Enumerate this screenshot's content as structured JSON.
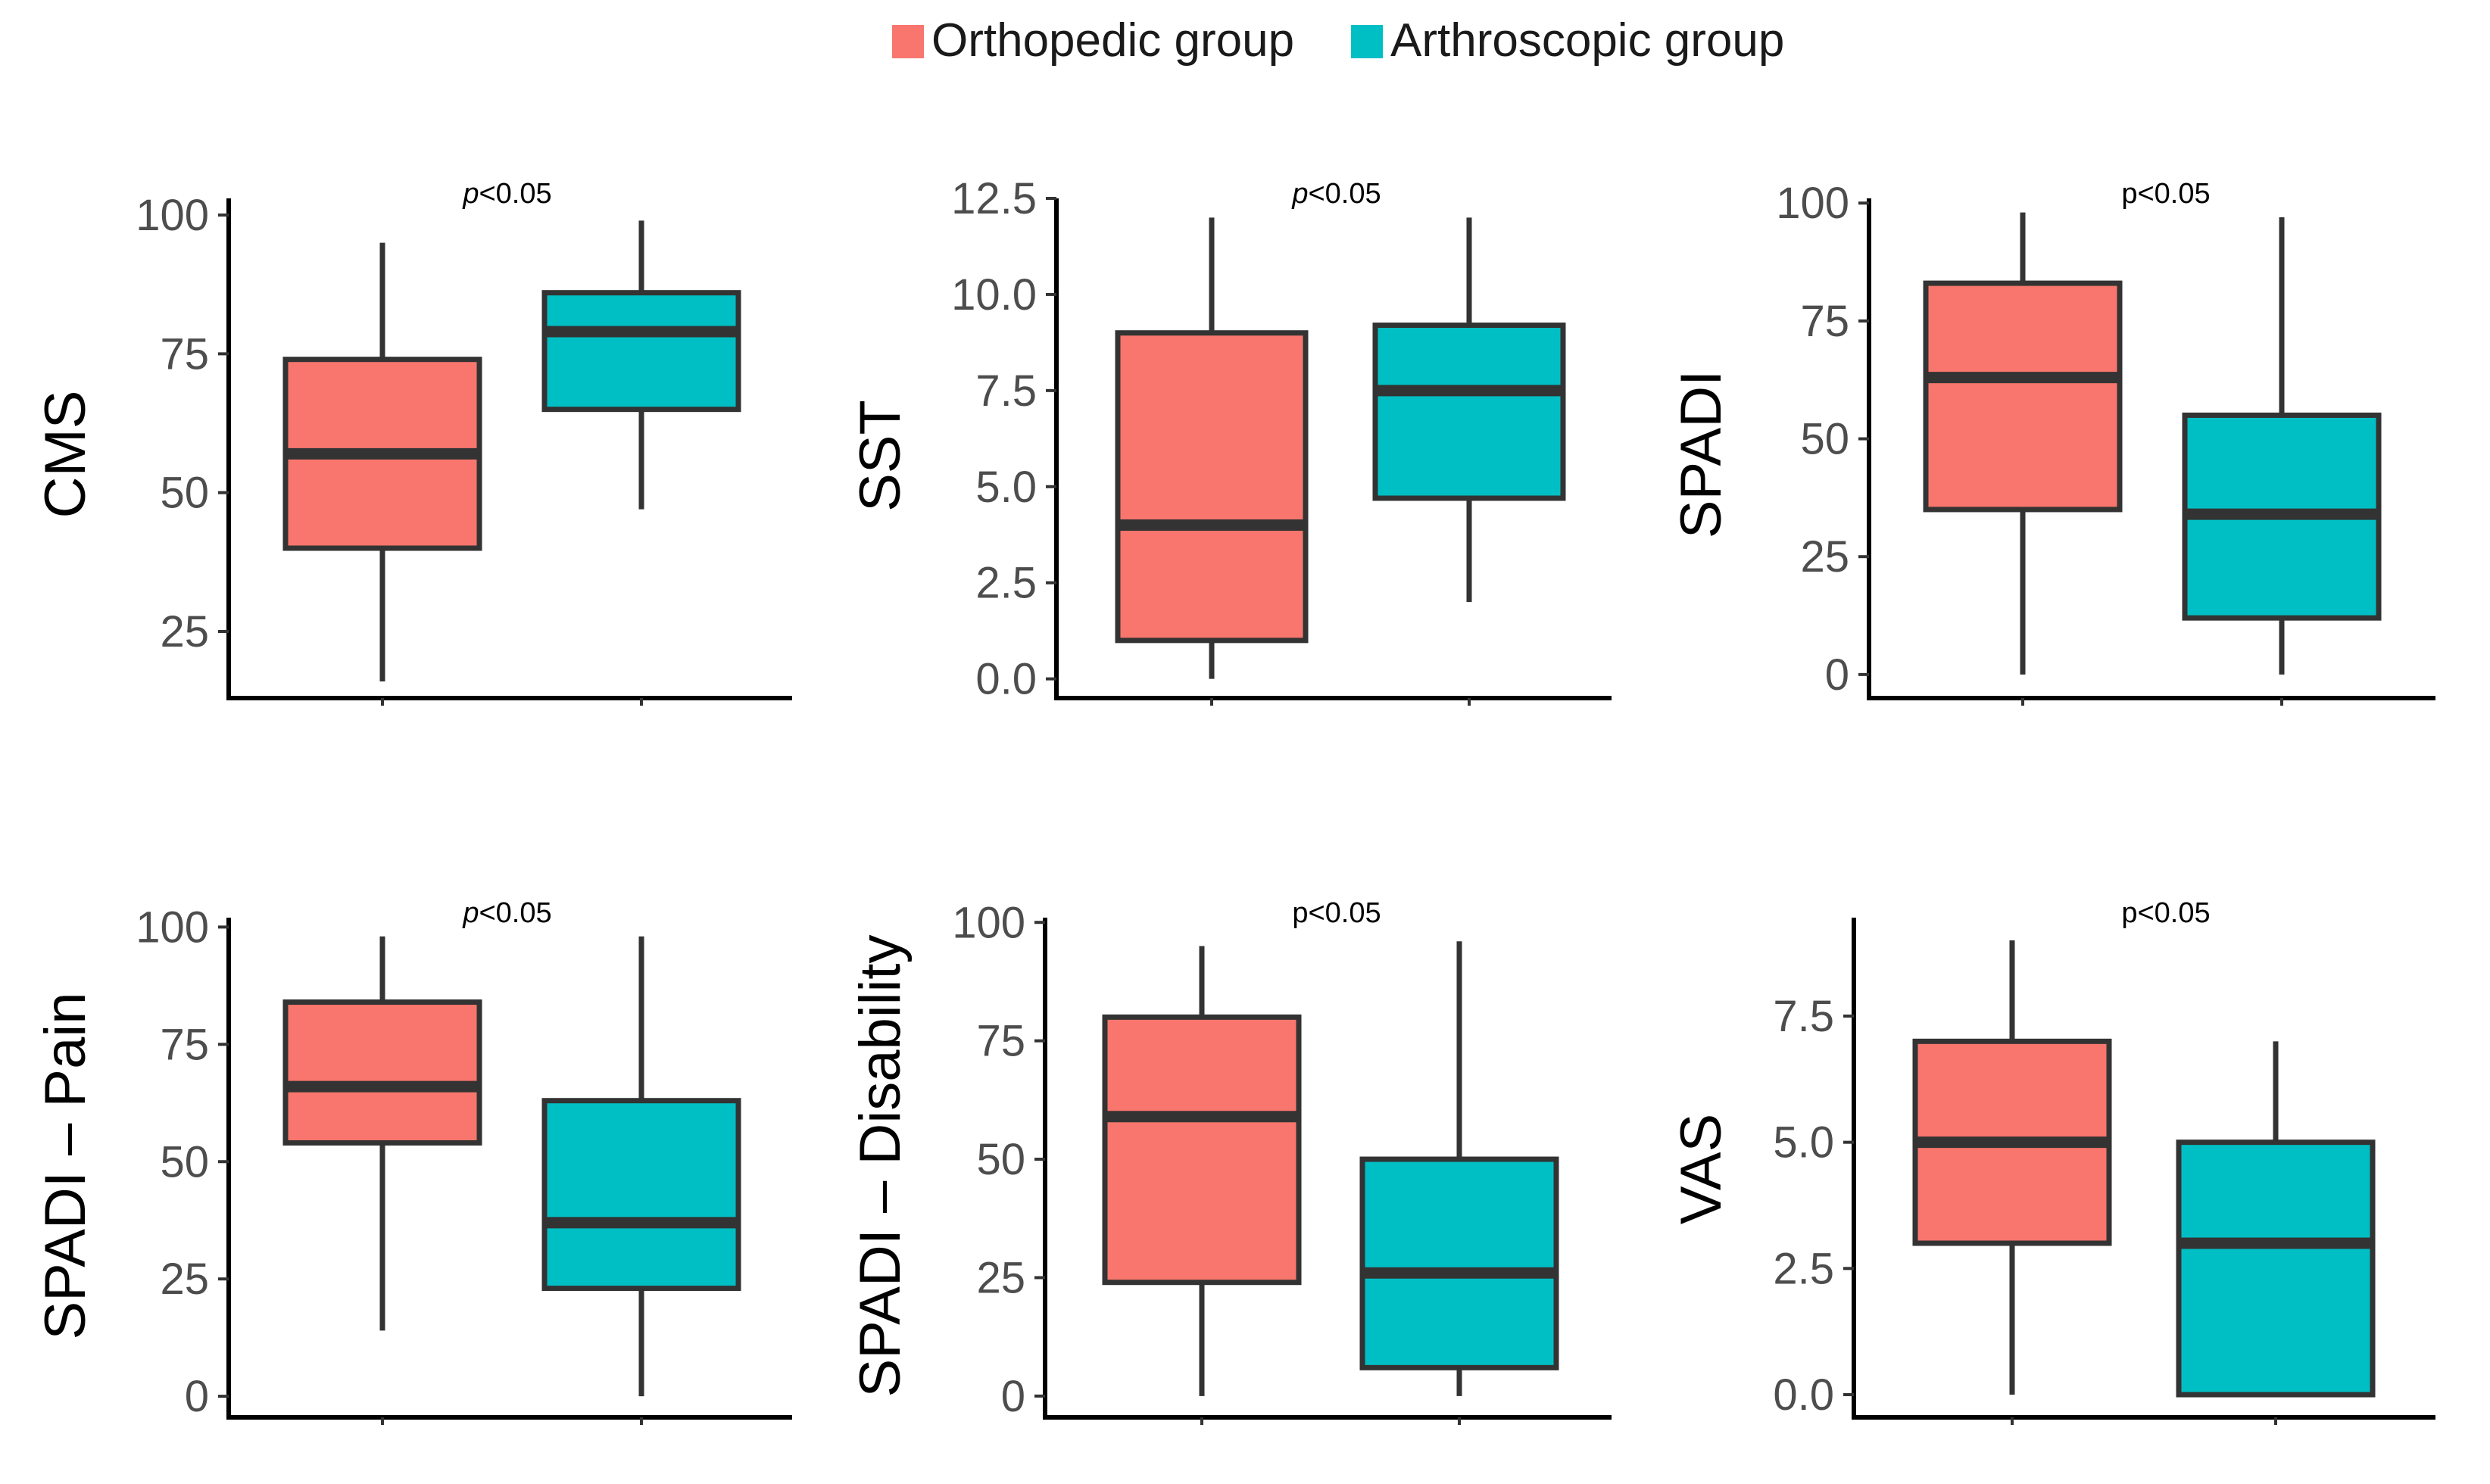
{
  "legend": {
    "items": [
      {
        "label": "Orthopedic group",
        "color": "#F8766D"
      },
      {
        "label": "Arthroscopic group",
        "color": "#00BFC4"
      }
    ]
  },
  "chart_data": [
    {
      "type": "boxplot",
      "ylabel": "CMS",
      "annotation_italic": "p",
      "annotation_rest": "<0.05",
      "ylim": [
        13,
        103
      ],
      "yticks": [
        25,
        50,
        75,
        100
      ],
      "ytick_labels": [
        "25",
        "50",
        "75",
        "100"
      ],
      "groups": [
        {
          "name": "Orthopedic group",
          "color": "#F8766D",
          "min": 16,
          "q1": 40,
          "median": 57,
          "q3": 74,
          "max": 95
        },
        {
          "name": "Arthroscopic group",
          "color": "#00BFC4",
          "min": 47,
          "q1": 65,
          "median": 79,
          "q3": 86,
          "max": 99
        }
      ]
    },
    {
      "type": "boxplot",
      "ylabel": "SST",
      "annotation_italic": "p",
      "annotation_rest": "<0.05",
      "ylim": [
        -0.5,
        12.5
      ],
      "yticks": [
        0,
        2.5,
        5,
        7.5,
        10,
        12.5
      ],
      "ytick_labels": [
        "0.0",
        "2.5",
        "5.0",
        "7.5",
        "10.0",
        "12.5"
      ],
      "groups": [
        {
          "name": "Orthopedic group",
          "color": "#F8766D",
          "min": 0,
          "q1": 1,
          "median": 4,
          "q3": 9,
          "max": 12
        },
        {
          "name": "Arthroscopic group",
          "color": "#00BFC4",
          "min": 2,
          "q1": 4.7,
          "median": 7.5,
          "q3": 9.2,
          "max": 12
        }
      ]
    },
    {
      "type": "boxplot",
      "ylabel": "SPADI",
      "annotation_italic": "",
      "annotation_rest": "p<0.05",
      "ylim": [
        -5,
        101
      ],
      "yticks": [
        0,
        25,
        50,
        75,
        100
      ],
      "ytick_labels": [
        "0",
        "25",
        "50",
        "75",
        "100"
      ],
      "groups": [
        {
          "name": "Orthopedic group",
          "color": "#F8766D",
          "min": 0,
          "q1": 35,
          "median": 63,
          "q3": 83,
          "max": 98
        },
        {
          "name": "Arthroscopic group",
          "color": "#00BFC4",
          "min": 0,
          "q1": 12,
          "median": 34,
          "q3": 55,
          "max": 97
        }
      ]
    },
    {
      "type": "boxplot",
      "ylabel": "SPADI – Pain",
      "annotation_italic": "p",
      "annotation_rest": "<0.05",
      "ylim": [
        -4.5,
        102
      ],
      "yticks": [
        0,
        25,
        50,
        75,
        100
      ],
      "ytick_labels": [
        "0",
        "25",
        "50",
        "75",
        "100"
      ],
      "groups": [
        {
          "name": "Orthopedic group",
          "color": "#F8766D",
          "min": 14,
          "q1": 54,
          "median": 66,
          "q3": 84,
          "max": 98
        },
        {
          "name": "Arthroscopic group",
          "color": "#00BFC4",
          "min": 0,
          "q1": 23,
          "median": 37,
          "q3": 63,
          "max": 98
        }
      ]
    },
    {
      "type": "boxplot",
      "ylabel": "SPADI – Disability",
      "annotation_italic": "",
      "annotation_rest": "p<0.05",
      "ylim": [
        -4.5,
        101
      ],
      "yticks": [
        0,
        25,
        50,
        75,
        100
      ],
      "ytick_labels": [
        "0",
        "25",
        "50",
        "75",
        "100"
      ],
      "groups": [
        {
          "name": "Orthopedic group",
          "color": "#F8766D",
          "min": 0,
          "q1": 24,
          "median": 59,
          "q3": 80,
          "max": 95
        },
        {
          "name": "Arthroscopic group",
          "color": "#00BFC4",
          "min": 0,
          "q1": 6,
          "median": 26,
          "q3": 50,
          "max": 96
        }
      ]
    },
    {
      "type": "boxplot",
      "ylabel": "VAS",
      "annotation_italic": "",
      "annotation_rest": "p<0.05",
      "ylim": [
        -0.45,
        9.45
      ],
      "yticks": [
        0,
        2.5,
        5,
        7.5
      ],
      "ytick_labels": [
        "0.0",
        "2.5",
        "5.0",
        "7.5"
      ],
      "groups": [
        {
          "name": "Orthopedic group",
          "color": "#F8766D",
          "min": 0,
          "q1": 3,
          "median": 5,
          "q3": 7,
          "max": 9
        },
        {
          "name": "Arthroscopic group",
          "color": "#00BFC4",
          "min": 0,
          "q1": 0,
          "median": 3,
          "q3": 5,
          "max": 7
        }
      ]
    }
  ]
}
